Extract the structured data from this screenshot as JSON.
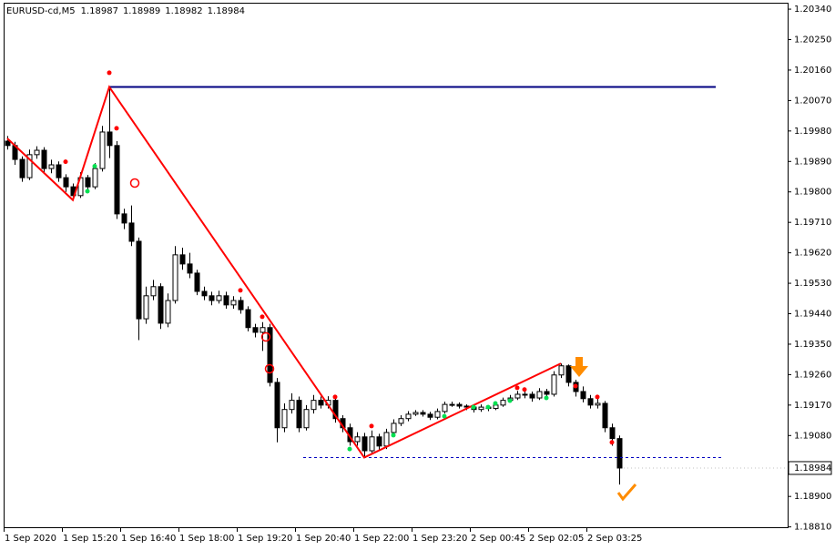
{
  "chart_data": {
    "type": "candlestick",
    "symbol": "EURUSD-cd,M5",
    "header_values": [
      1.18987,
      1.18989,
      1.18982,
      1.18984
    ],
    "current_price": 1.18984,
    "categories": [
      "1 Sep 2020",
      null,
      null,
      null,
      null,
      null,
      null,
      null,
      "1 Sep 15:20",
      null,
      null,
      null,
      null,
      null,
      null,
      null,
      "1 Sep 16:40",
      null,
      null,
      null,
      null,
      null,
      null,
      null,
      "1 Sep 18:00",
      null,
      null,
      null,
      null,
      null,
      null,
      null,
      "1 Sep 19:20",
      null,
      null,
      null,
      null,
      null,
      null,
      null,
      "1 Sep 20:40",
      null,
      null,
      null,
      null,
      null,
      null,
      null,
      "1 Sep 22:00",
      null,
      null,
      null,
      null,
      null,
      null,
      null,
      "1 Sep 23:20",
      null,
      null,
      null,
      null,
      null,
      null,
      null,
      "2 Sep 00:45",
      null,
      null,
      null,
      null,
      null,
      null,
      null,
      "2 Sep 02:05",
      null,
      null,
      null,
      null,
      null,
      null,
      null,
      "2 Sep 03:25",
      null,
      null,
      null,
      null
    ],
    "open": [
      1.1995,
      1.19937,
      1.19896,
      1.19842,
      1.1991,
      1.19923,
      1.19869,
      1.1988,
      1.19842,
      1.19815,
      1.19789,
      1.19842,
      1.19815,
      1.19869,
      1.19977,
      1.19937,
      1.19735,
      1.19708,
      1.19654,
      1.19425,
      1.19493,
      1.1952,
      1.19412,
      1.19479,
      1.19614,
      1.19587,
      1.1956,
      1.19506,
      1.19493,
      1.19479,
      1.19493,
      1.19466,
      1.19479,
      1.19452,
      1.19399,
      1.19385,
      1.19399,
      1.19237,
      1.19103,
      1.19157,
      1.19184,
      1.19103,
      1.19157,
      1.19184,
      1.1917,
      1.19184,
      1.1913,
      1.19103,
      1.19062,
      1.19076,
      1.19035,
      1.19076,
      1.19049,
      1.19089,
      1.19116,
      1.1913,
      1.19143,
      1.19148,
      1.19143,
      1.19134,
      1.19151,
      1.19172,
      1.19172,
      1.19167,
      1.19164,
      1.19157,
      1.19164,
      1.1916,
      1.1917,
      1.19184,
      1.19191,
      1.19202,
      1.19202,
      1.19191,
      1.1921,
      1.19202,
      1.19259,
      1.19286,
      1.19237,
      1.1921,
      1.19189,
      1.1917,
      1.19175,
      1.19103,
      1.19071
    ],
    "high": [
      1.19965,
      1.19948,
      1.19905,
      1.19925,
      1.19935,
      1.19932,
      1.19895,
      1.1989,
      1.19852,
      1.19825,
      1.19858,
      1.1985,
      1.19885,
      1.19995,
      1.2011,
      1.1995,
      1.1975,
      1.1976,
      1.19665,
      1.1952,
      1.1954,
      1.1953,
      1.195,
      1.1964,
      1.19635,
      1.1962,
      1.1957,
      1.1952,
      1.19505,
      1.19508,
      1.19505,
      1.19492,
      1.1949,
      1.19462,
      1.1941,
      1.19415,
      1.1941,
      1.1925,
      1.19175,
      1.19205,
      1.19195,
      1.1917,
      1.192,
      1.19195,
      1.19196,
      1.19192,
      1.1914,
      1.19115,
      1.1909,
      1.19088,
      1.19095,
      1.19085,
      1.191,
      1.19128,
      1.1914,
      1.19152,
      1.19155,
      1.19155,
      1.1915,
      1.1916,
      1.1918,
      1.1918,
      1.19178,
      1.19172,
      1.1917,
      1.19172,
      1.1917,
      1.1918,
      1.19192,
      1.192,
      1.19212,
      1.1921,
      1.1921,
      1.1922,
      1.19218,
      1.1927,
      1.19293,
      1.1929,
      1.19245,
      1.19225,
      1.192,
      1.1919,
      1.19182,
      1.19115,
      1.1908
    ],
    "low": [
      1.19925,
      1.1988,
      1.1983,
      1.19835,
      1.19898,
      1.19858,
      1.19855,
      1.1983,
      1.198,
      1.19776,
      1.19782,
      1.198,
      1.19808,
      1.1986,
      1.199,
      1.1972,
      1.1969,
      1.1964,
      1.19362,
      1.1941,
      1.1948,
      1.19395,
      1.194,
      1.1947,
      1.1957,
      1.19545,
      1.19495,
      1.1948,
      1.19465,
      1.1947,
      1.19455,
      1.19455,
      1.1944,
      1.19388,
      1.1937,
      1.1933,
      1.19225,
      1.1906,
      1.1909,
      1.19145,
      1.1909,
      1.19095,
      1.19145,
      1.1916,
      1.1916,
      1.19118,
      1.1909,
      1.1905,
      1.1905,
      1.19015,
      1.19025,
      1.19035,
      1.1904,
      1.1908,
      1.19108,
      1.19122,
      1.19138,
      1.19136,
      1.19126,
      1.19128,
      1.19145,
      1.19165,
      1.1916,
      1.19155,
      1.19148,
      1.1915,
      1.19152,
      1.19155,
      1.19165,
      1.19178,
      1.19185,
      1.1919,
      1.1918,
      1.19185,
      1.1919,
      1.19195,
      1.1925,
      1.19225,
      1.19195,
      1.19178,
      1.1916,
      1.1916,
      1.1909,
      1.1905,
      1.18935
    ],
    "close": [
      1.19937,
      1.19896,
      1.19842,
      1.1991,
      1.19923,
      1.19869,
      1.1988,
      1.19842,
      1.19815,
      1.19789,
      1.19842,
      1.19815,
      1.19869,
      1.19977,
      1.19937,
      1.19735,
      1.19708,
      1.19654,
      1.19425,
      1.19493,
      1.1952,
      1.19412,
      1.19479,
      1.19614,
      1.19587,
      1.1956,
      1.19506,
      1.19493,
      1.19479,
      1.19493,
      1.19466,
      1.19479,
      1.19452,
      1.19399,
      1.19385,
      1.19399,
      1.19237,
      1.19103,
      1.19157,
      1.19184,
      1.19103,
      1.19157,
      1.19184,
      1.1917,
      1.19184,
      1.1913,
      1.19103,
      1.19062,
      1.19076,
      1.19035,
      1.19076,
      1.19049,
      1.19089,
      1.19116,
      1.1913,
      1.19143,
      1.19148,
      1.19143,
      1.19134,
      1.19151,
      1.19172,
      1.19172,
      1.19167,
      1.19164,
      1.19157,
      1.19164,
      1.1916,
      1.1917,
      1.19184,
      1.19191,
      1.19202,
      1.19202,
      1.19191,
      1.1921,
      1.19202,
      1.19259,
      1.19286,
      1.19237,
      1.1921,
      1.19189,
      1.1917,
      1.19175,
      1.19103,
      1.19071,
      1.18984
    ],
    "zigzag": {
      "color": "#ff0000",
      "x": [
        0,
        9,
        14,
        49,
        76
      ],
      "values": [
        1.19958,
        1.19776,
        1.2011,
        1.19015,
        1.19293
      ]
    },
    "resistance_level": {
      "color": "#000080",
      "from": 14,
      "value": 1.2011
    },
    "support_level": {
      "color": "#0000c0",
      "value": 1.19015
    },
    "red_dots": {
      "color": "#ff0000",
      "x": [
        14,
        8,
        15,
        32,
        35,
        45,
        50,
        70,
        71,
        78,
        81,
        83
      ],
      "values": [
        1.20152,
        1.19889,
        1.19988,
        1.19509,
        1.19431,
        1.19194,
        1.19108,
        1.19221,
        1.19216,
        1.19226,
        1.19194,
        1.1906
      ]
    },
    "green_dots": {
      "color": "#00e050",
      "x": [
        11,
        12,
        47,
        53,
        60,
        64,
        66,
        67,
        69,
        74
      ],
      "values": [
        1.19802,
        1.19876,
        1.1904,
        1.19081,
        1.19137,
        1.19164,
        1.19164,
        1.19175,
        1.19183,
        1.19191
      ]
    },
    "ylim": [
      1.18809,
      1.20359
    ],
    "yticks": [
      {
        "value": 1.2034,
        "label": "1.20340"
      },
      {
        "value": 1.2025,
        "label": "1.20250"
      },
      {
        "value": 1.2016,
        "label": "1.20160"
      },
      {
        "value": 1.2007,
        "label": "1.20070"
      },
      {
        "value": 1.1998,
        "label": "1.19980"
      },
      {
        "value": 1.1989,
        "label": "1.19890"
      },
      {
        "value": 1.198,
        "label": "1.19800"
      },
      {
        "value": 1.1971,
        "label": "1.19710"
      },
      {
        "value": 1.1962,
        "label": "1.19620"
      },
      {
        "value": 1.1953,
        "label": "1.19530"
      },
      {
        "value": 1.1944,
        "label": "1.19440"
      },
      {
        "value": 1.1935,
        "label": "1.19350"
      },
      {
        "value": 1.1926,
        "label": "1.19260"
      },
      {
        "value": 1.1917,
        "label": "1.19170"
      },
      {
        "value": 1.1908,
        "label": "1.19080"
      },
      {
        "value": 1.189,
        "label": "1.18900"
      },
      {
        "value": 1.1881,
        "label": "1.18810"
      }
    ],
    "up_color": "#ffffff",
    "down_color": "#000000"
  }
}
